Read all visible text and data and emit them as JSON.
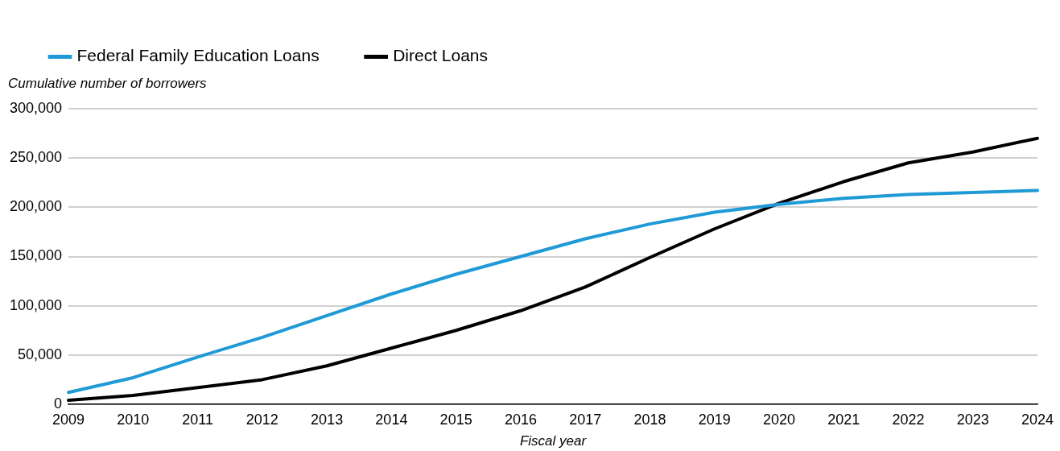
{
  "chart_data": {
    "type": "line",
    "xlabel": "Fiscal year",
    "ylabel": "Cumulative number of borrowers",
    "categories": [
      "2009",
      "2010",
      "2011",
      "2012",
      "2013",
      "2014",
      "2015",
      "2016",
      "2017",
      "2018",
      "2019",
      "2020",
      "2021",
      "2022",
      "2023",
      "2024"
    ],
    "series": [
      {
        "name": "Federal Family Education Loans",
        "color": "#1f9ad6",
        "values": [
          12000,
          27000,
          48000,
          68000,
          90000,
          112000,
          132000,
          150000,
          168000,
          183000,
          195000,
          203000,
          209000,
          213000,
          215000,
          217000
        ]
      },
      {
        "name": "Direct Loans",
        "color": "#000000",
        "values": [
          4000,
          9000,
          17000,
          25000,
          39000,
          57000,
          75000,
          95000,
          119000,
          149000,
          178000,
          204000,
          226000,
          245000,
          256000,
          270000
        ]
      }
    ],
    "ylim": [
      0,
      300000
    ],
    "yticks": [
      0,
      {
        "value": 50000,
        "label": "50,000"
      },
      {
        "value": 100000,
        "label": "100,000"
      },
      {
        "value": 150000,
        "label": "150,000"
      },
      {
        "value": 200000,
        "label": "200,000"
      },
      {
        "value": 250000,
        "label": "250,000"
      },
      {
        "value": 300000,
        "label": "300,000"
      }
    ],
    "grid": "y",
    "legend": "top left",
    "marker": "none",
    "line_style": "solid"
  }
}
